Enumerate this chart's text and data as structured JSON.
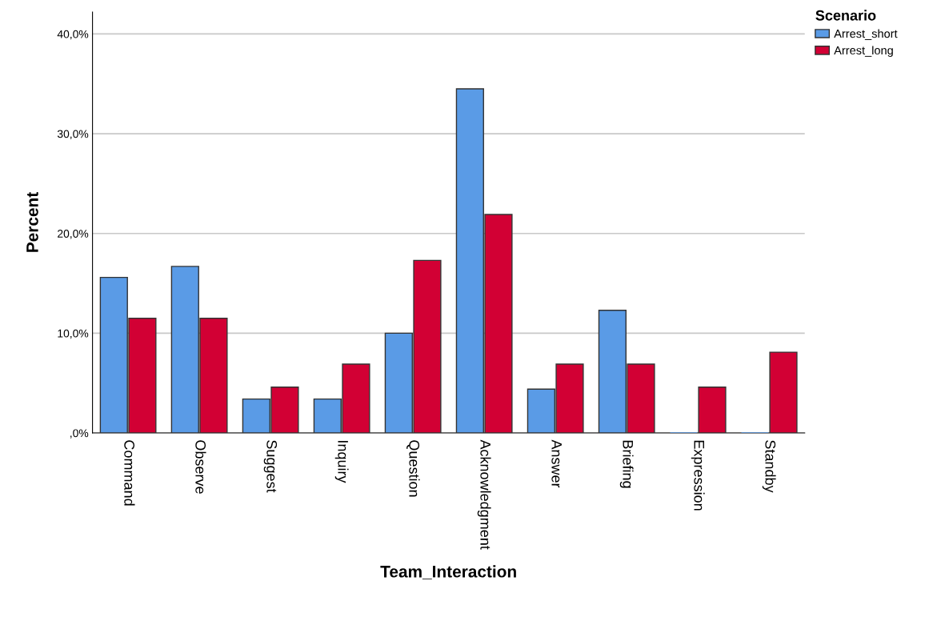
{
  "chart_data": {
    "type": "bar",
    "xlabel": "Team_Interaction",
    "ylabel": "Percent",
    "legend_title": "Scenario",
    "categories": [
      "Command",
      "Observe",
      "Suggest",
      "Inquiry",
      "Question",
      "Acknowledgment",
      "Answer",
      "Briefing",
      "Expression",
      "Standby"
    ],
    "series": [
      {
        "name": "Arrest_short",
        "color": "#5a9be6",
        "values": [
          15.6,
          16.7,
          3.4,
          3.4,
          10.0,
          34.5,
          4.4,
          12.3,
          0,
          0
        ]
      },
      {
        "name": "Arrest_long",
        "color": "#d20034",
        "values": [
          11.5,
          11.5,
          4.6,
          6.9,
          17.3,
          21.9,
          6.9,
          6.9,
          4.6,
          8.1
        ]
      }
    ],
    "ylim": [
      0,
      42.2
    ],
    "yticks": [
      {
        "value": 0,
        "label": ",0%"
      },
      {
        "value": 10,
        "label": "10,0%"
      },
      {
        "value": 20,
        "label": "20,0%"
      },
      {
        "value": 30,
        "label": "30,0%"
      },
      {
        "value": 40,
        "label": "40,0%"
      }
    ],
    "grid": "y",
    "legend": "top right"
  }
}
